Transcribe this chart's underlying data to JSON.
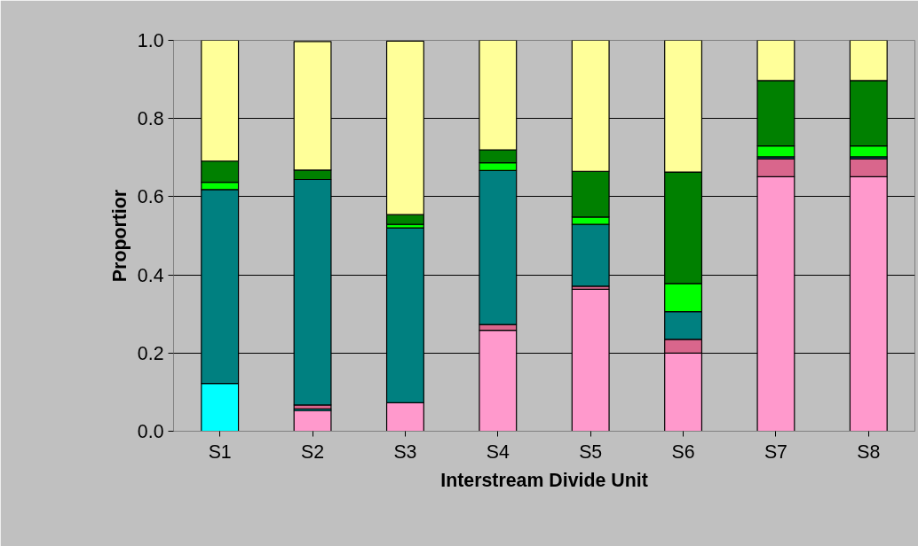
{
  "chart_data": {
    "type": "bar",
    "stacked": true,
    "xlabel": "Interstream Divide Unit",
    "ylabel": "Proportior",
    "categories": [
      "S1",
      "S2",
      "S3",
      "S4",
      "S5",
      "S6",
      "S7",
      "S8"
    ],
    "series": [
      {
        "color": "#ff99cc",
        "values": [
          null,
          0.053,
          0.073,
          0.258,
          0.363,
          0.2,
          0.651,
          0.651
        ]
      },
      {
        "color": "#00ffff",
        "values": [
          0.122,
          0.004,
          null,
          null,
          null,
          null,
          null,
          null
        ]
      },
      {
        "color": "#d9668c",
        "values": [
          null,
          0.01,
          null,
          0.015,
          0.008,
          0.035,
          0.046,
          0.046
        ]
      },
      {
        "color": "#008080",
        "values": [
          0.496,
          0.577,
          0.447,
          0.394,
          0.158,
          0.071,
          0.005,
          0.005
        ]
      },
      {
        "color": "#00ff00",
        "values": [
          0.019,
          null,
          0.009,
          0.02,
          0.019,
          0.072,
          0.028,
          0.028
        ]
      },
      {
        "color": "#008000",
        "values": [
          0.054,
          0.024,
          0.025,
          0.033,
          0.117,
          0.285,
          0.167,
          0.167
        ]
      },
      {
        "color": "#ffff99",
        "values": [
          0.309,
          0.329,
          0.444,
          0.28,
          0.335,
          0.337,
          0.103,
          0.103
        ]
      }
    ],
    "ylim": [
      0,
      1
    ],
    "yticks": [
      {
        "value": 0,
        "label": "0.0"
      },
      {
        "value": 0.2,
        "label": "0.2"
      },
      {
        "value": 0.4,
        "label": "0.4"
      },
      {
        "value": 0.6,
        "label": "0.6"
      },
      {
        "value": 0.8,
        "label": "0.8"
      },
      {
        "value": 1,
        "label": "1.0"
      }
    ],
    "grid": "y"
  }
}
